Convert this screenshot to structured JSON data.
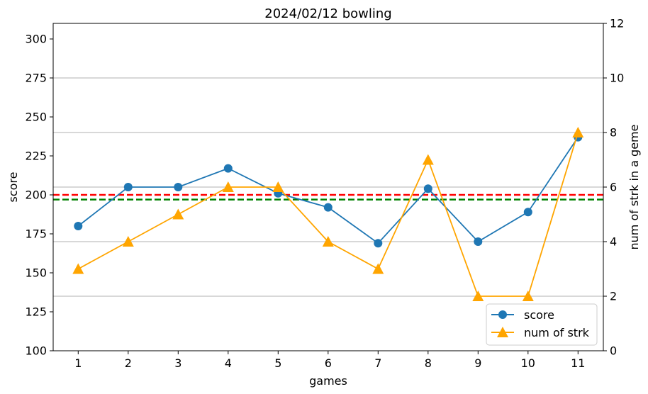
{
  "chart_data": {
    "type": "line",
    "title": "2024/02/12 bowling",
    "xlabel": "games",
    "ylabel": "score",
    "y2label": "num of strk in a geme",
    "x": [
      1,
      2,
      3,
      4,
      5,
      6,
      7,
      8,
      9,
      10,
      11
    ],
    "ylim": [
      100,
      310
    ],
    "y2lim": [
      0,
      12
    ],
    "yticks": [
      100,
      125,
      150,
      175,
      200,
      225,
      250,
      275,
      300
    ],
    "y2ticks": [
      0,
      2,
      4,
      6,
      8,
      10,
      12
    ],
    "grid": "horizontal lines at right-axis ticks",
    "legend_position": "lower-right",
    "series": [
      {
        "name": "score",
        "axis": "left",
        "marker": "circle",
        "color": "#1f77b4",
        "values": [
          180,
          205,
          205,
          217,
          201,
          192,
          169,
          204,
          170,
          189,
          237
        ]
      },
      {
        "name": "num of strk",
        "axis": "right",
        "marker": "triangle",
        "color": "#ffa500",
        "values": [
          3,
          4,
          5,
          6,
          6,
          4,
          3,
          7,
          2,
          2,
          8
        ]
      }
    ],
    "reference_lines": [
      {
        "axis": "left",
        "value": 200,
        "color": "#ff0000",
        "style": "dashed"
      },
      {
        "axis": "left",
        "value": 197,
        "color": "#008000",
        "style": "dashed"
      }
    ]
  }
}
